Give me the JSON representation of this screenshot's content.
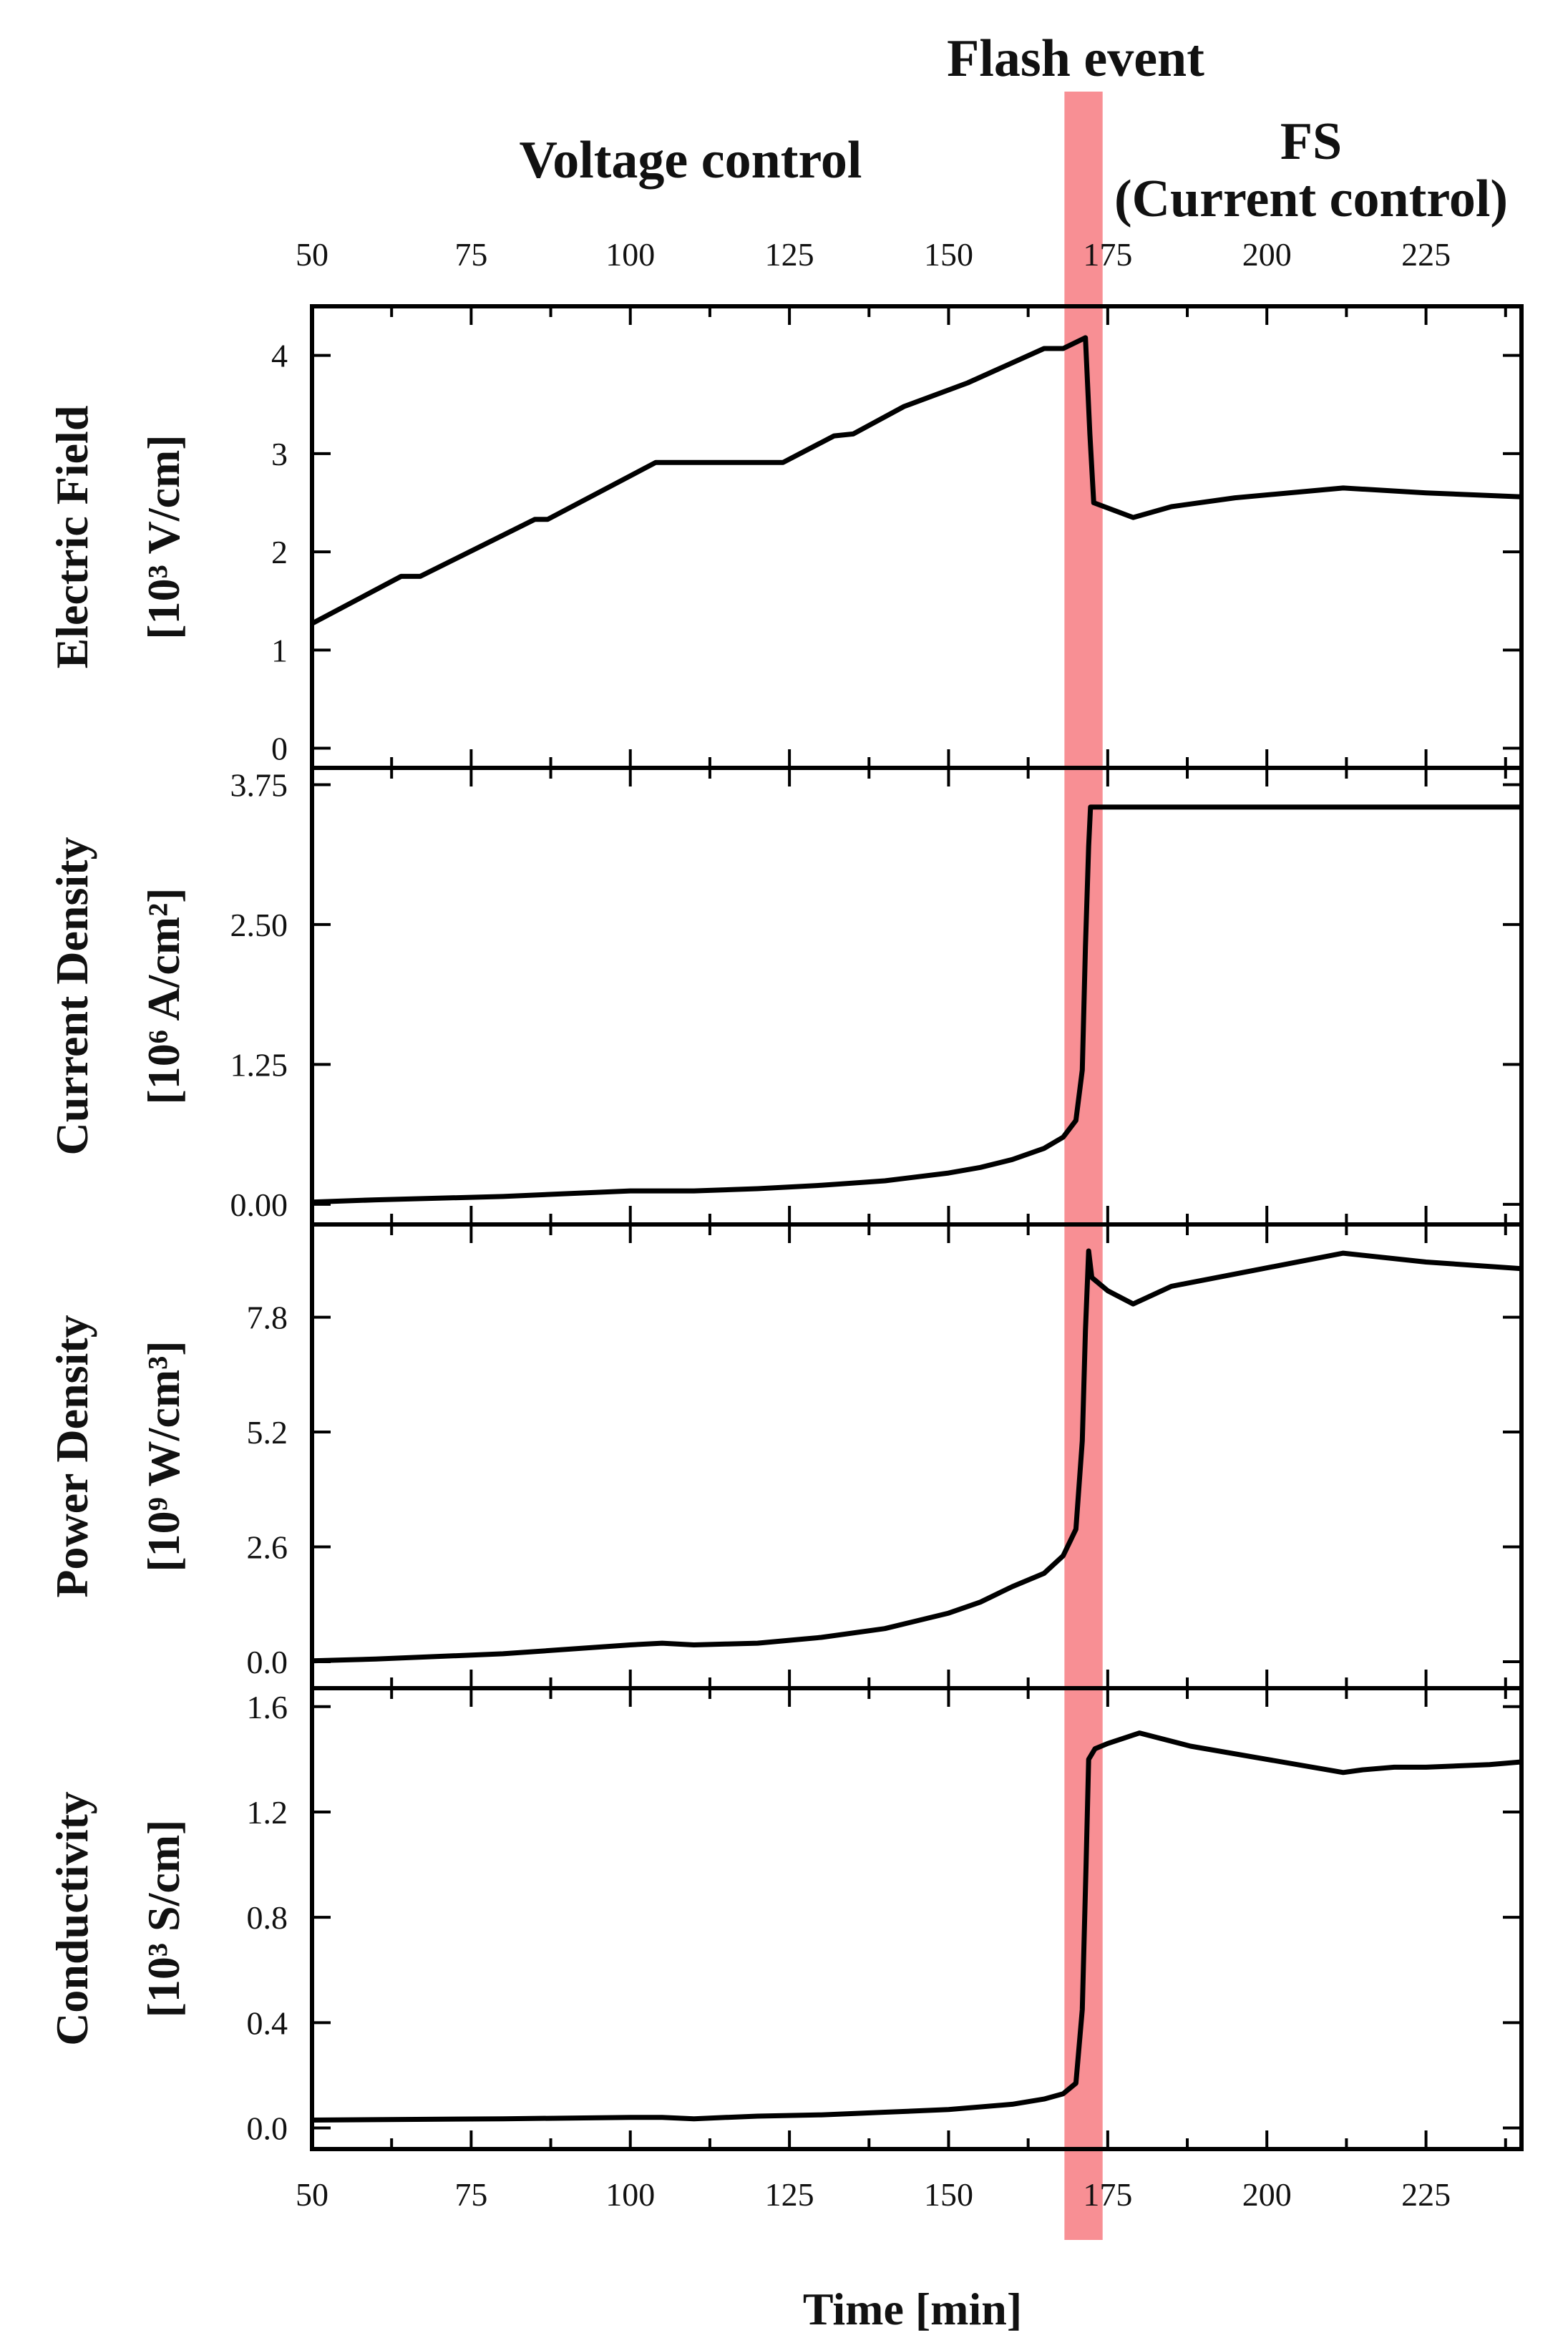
{
  "headers": {
    "flash": "Flash event",
    "voltage": "Voltage control",
    "fs": "FS",
    "current_control": "(Current control)"
  },
  "colors": {
    "flash_band": "#f2333d",
    "line": "#000000"
  },
  "chart_data": {
    "type": "line",
    "x_axis": {
      "label": "Time [min]",
      "range": [
        50,
        240
      ],
      "ticks": [
        50,
        75,
        100,
        125,
        150,
        175,
        200,
        225
      ],
      "tick_labels": [
        "50",
        "75",
        "100",
        "125",
        "150",
        "175",
        "200",
        "225"
      ],
      "top_tick_labels": true
    },
    "flash_event": {
      "label": "Flash event",
      "x_range": [
        168.2,
        174.2
      ]
    },
    "panels": [
      {
        "id": "electric-field",
        "ylabel_line1": "Electric Field",
        "ylabel_line2": "[10³ V/cm]",
        "ylim": [
          -0.2,
          4.5
        ],
        "y_ticks": [
          0,
          1,
          2,
          3,
          4
        ],
        "y_tick_labels": [
          "0",
          "1",
          "2",
          "3",
          "4"
        ],
        "series": {
          "x": [
            50,
            64,
            67,
            85,
            87,
            104,
            110,
            115,
            124,
            132,
            135,
            143,
            153,
            165,
            168,
            171.5,
            172.2,
            172.8,
            179,
            185,
            195,
            212,
            225,
            240
          ],
          "y": [
            1.27,
            1.75,
            1.75,
            2.33,
            2.33,
            2.91,
            2.91,
            2.91,
            2.91,
            3.18,
            3.2,
            3.48,
            3.72,
            4.07,
            4.07,
            4.18,
            3.2,
            2.5,
            2.35,
            2.46,
            2.55,
            2.65,
            2.6,
            2.56
          ]
        }
      },
      {
        "id": "current-density",
        "ylabel_line1": "Current Density",
        "ylabel_line2": "[10⁶ A/cm²]",
        "ylim": [
          -0.18,
          3.9
        ],
        "y_ticks": [
          0.0,
          1.25,
          2.5,
          3.75
        ],
        "y_tick_labels": [
          "0.00",
          "1.25",
          "2.50",
          "3.75"
        ],
        "series": {
          "x": [
            50,
            60,
            80,
            100,
            110,
            120,
            130,
            140,
            150,
            155,
            160,
            165,
            168,
            170,
            171,
            171.5,
            172,
            172.3,
            172.6,
            240
          ],
          "y": [
            0.02,
            0.04,
            0.07,
            0.12,
            0.12,
            0.14,
            0.17,
            0.21,
            0.28,
            0.33,
            0.4,
            0.5,
            0.6,
            0.75,
            1.2,
            2.3,
            3.2,
            3.55,
            3.55,
            3.55
          ]
        }
      },
      {
        "id": "power-density",
        "ylabel_line1": "Power Density",
        "ylabel_line2": "[10⁹ W/cm³]",
        "ylim": [
          -0.6,
          9.9
        ],
        "y_ticks": [
          0.0,
          2.6,
          5.2,
          7.8
        ],
        "y_tick_labels": [
          "0.0",
          "2.6",
          "5.2",
          "7.8"
        ],
        "series": {
          "x": [
            50,
            60,
            80,
            100,
            105,
            110,
            115,
            120,
            130,
            140,
            150,
            155,
            160,
            165,
            168,
            170,
            171,
            171.5,
            172,
            172.5,
            175,
            179,
            185,
            212,
            225,
            240
          ],
          "y": [
            0.02,
            0.06,
            0.18,
            0.38,
            0.42,
            0.38,
            0.4,
            0.42,
            0.55,
            0.75,
            1.1,
            1.35,
            1.7,
            2.0,
            2.4,
            3.0,
            5.0,
            7.5,
            9.3,
            8.7,
            8.4,
            8.1,
            8.5,
            9.25,
            9.05,
            8.9
          ]
        }
      },
      {
        "id": "conductivity",
        "ylabel_line1": "Conductivity",
        "ylabel_line2": "[10³ S/cm]",
        "ylim": [
          -0.08,
          1.67
        ],
        "y_ticks": [
          0.0,
          0.4,
          0.8,
          1.2,
          1.6
        ],
        "y_tick_labels": [
          "0.0",
          "0.4",
          "0.8",
          "1.2",
          "1.6"
        ],
        "series": {
          "x": [
            50,
            80,
            100,
            105,
            110,
            115,
            120,
            130,
            140,
            150,
            160,
            165,
            168,
            170,
            171,
            171.6,
            172,
            173,
            175,
            180,
            188,
            200,
            212,
            215,
            220,
            225,
            235,
            240
          ],
          "y": [
            0.03,
            0.035,
            0.04,
            0.04,
            0.035,
            0.04,
            0.045,
            0.05,
            0.06,
            0.07,
            0.09,
            0.11,
            0.13,
            0.17,
            0.45,
            1.0,
            1.4,
            1.44,
            1.46,
            1.5,
            1.45,
            1.4,
            1.35,
            1.36,
            1.37,
            1.37,
            1.38,
            1.39
          ]
        }
      }
    ]
  }
}
